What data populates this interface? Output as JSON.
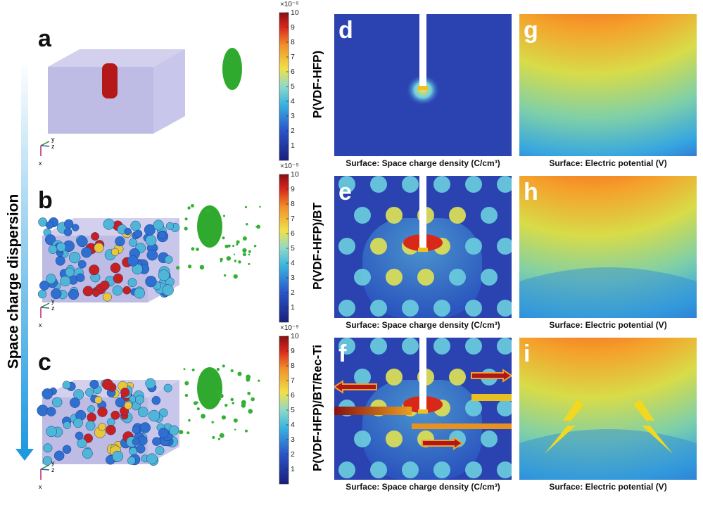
{
  "side_label": "Space charge dispersion",
  "axis_labels": {
    "y": "y",
    "z": "z",
    "x": "x"
  },
  "rows": [
    {
      "model_label": "a",
      "colorbar": {
        "exponent": "×10⁻⁹",
        "ticks": [
          1,
          2,
          3,
          4,
          5,
          6,
          7,
          8,
          9,
          10
        ]
      },
      "material": "P(VDF-HFP)",
      "charge_panel": {
        "label": "d",
        "caption": "Surface: Space charge  density (C/cm³)"
      },
      "potential_panel": {
        "label": "g",
        "caption": "Surface: Electric potential (V)"
      }
    },
    {
      "model_label": "b",
      "colorbar": {
        "exponent": "×10⁻⁹",
        "ticks": [
          1,
          2,
          3,
          4,
          5,
          6,
          7,
          8,
          9,
          10
        ]
      },
      "material": "P(VDF-HFP)/BT",
      "charge_panel": {
        "label": "e",
        "caption": "Surface: Space charge  density (C/cm³)"
      },
      "potential_panel": {
        "label": "h",
        "caption": "Surface: Electric potential (V)"
      }
    },
    {
      "model_label": "c",
      "colorbar": {
        "exponent": "×10⁻⁹",
        "ticks": [
          1,
          2,
          3,
          4,
          5,
          6,
          7,
          8,
          9,
          10
        ]
      },
      "material": "P(VDF-HFP)/BT/Rec-Ti",
      "charge_panel": {
        "label": "f",
        "caption": "Surface: Space charge  density (C/cm³)"
      },
      "potential_panel": {
        "label": "i",
        "caption": "Surface: Electric potential (V)"
      }
    }
  ]
}
